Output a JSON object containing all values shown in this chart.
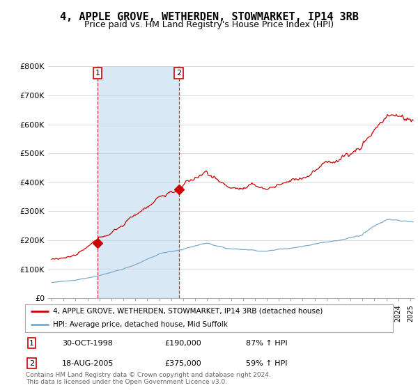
{
  "title": "4, APPLE GROVE, WETHERDEN, STOWMARKET, IP14 3RB",
  "subtitle": "Price paid vs. HM Land Registry's House Price Index (HPI)",
  "ylim": [
    0,
    800000
  ],
  "yticks": [
    0,
    100000,
    200000,
    300000,
    400000,
    500000,
    600000,
    700000,
    800000
  ],
  "ytick_labels": [
    "£0",
    "£100K",
    "£200K",
    "£300K",
    "£400K",
    "£500K",
    "£600K",
    "£700K",
    "£800K"
  ],
  "red_line_label": "4, APPLE GROVE, WETHERDEN, STOWMARKET, IP14 3RB (detached house)",
  "blue_line_label": "HPI: Average price, detached house, Mid Suffolk",
  "transaction1_date": "30-OCT-1998",
  "transaction1_price": "£190,000",
  "transaction1_hpi": "87% ↑ HPI",
  "transaction1_year": 1998.83,
  "transaction1_value": 190000,
  "transaction2_date": "18-AUG-2005",
  "transaction2_price": "£375,000",
  "transaction2_hpi": "59% ↑ HPI",
  "transaction2_year": 2005.63,
  "transaction2_value": 375000,
  "red_color": "#CC0000",
  "blue_color": "#7AAAD0",
  "shade_color": "#D8E8F5",
  "background_color": "#FFFFFF",
  "grid_color": "#CCCCCC",
  "footnote": "Contains HM Land Registry data © Crown copyright and database right 2024.\nThis data is licensed under the Open Government Licence v3.0.",
  "title_fontsize": 11,
  "subtitle_fontsize": 9,
  "xlim_left": 1994.7,
  "xlim_right": 2025.3
}
